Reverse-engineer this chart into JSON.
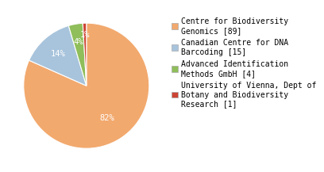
{
  "labels": [
    "Centre for Biodiversity\nGenomics [89]",
    "Canadian Centre for DNA\nBarcoding [15]",
    "Advanced Identification\nMethods GmbH [4]",
    "University of Vienna, Dept of\nBotany and Biodiversity\nResearch [1]"
  ],
  "values": [
    89,
    15,
    4,
    1
  ],
  "colors": [
    "#f2a96e",
    "#a8c4dc",
    "#8fbe5a",
    "#cc4433"
  ],
  "background_color": "#ffffff",
  "label_fontsize": 7,
  "pct_fontsize": 7.5
}
